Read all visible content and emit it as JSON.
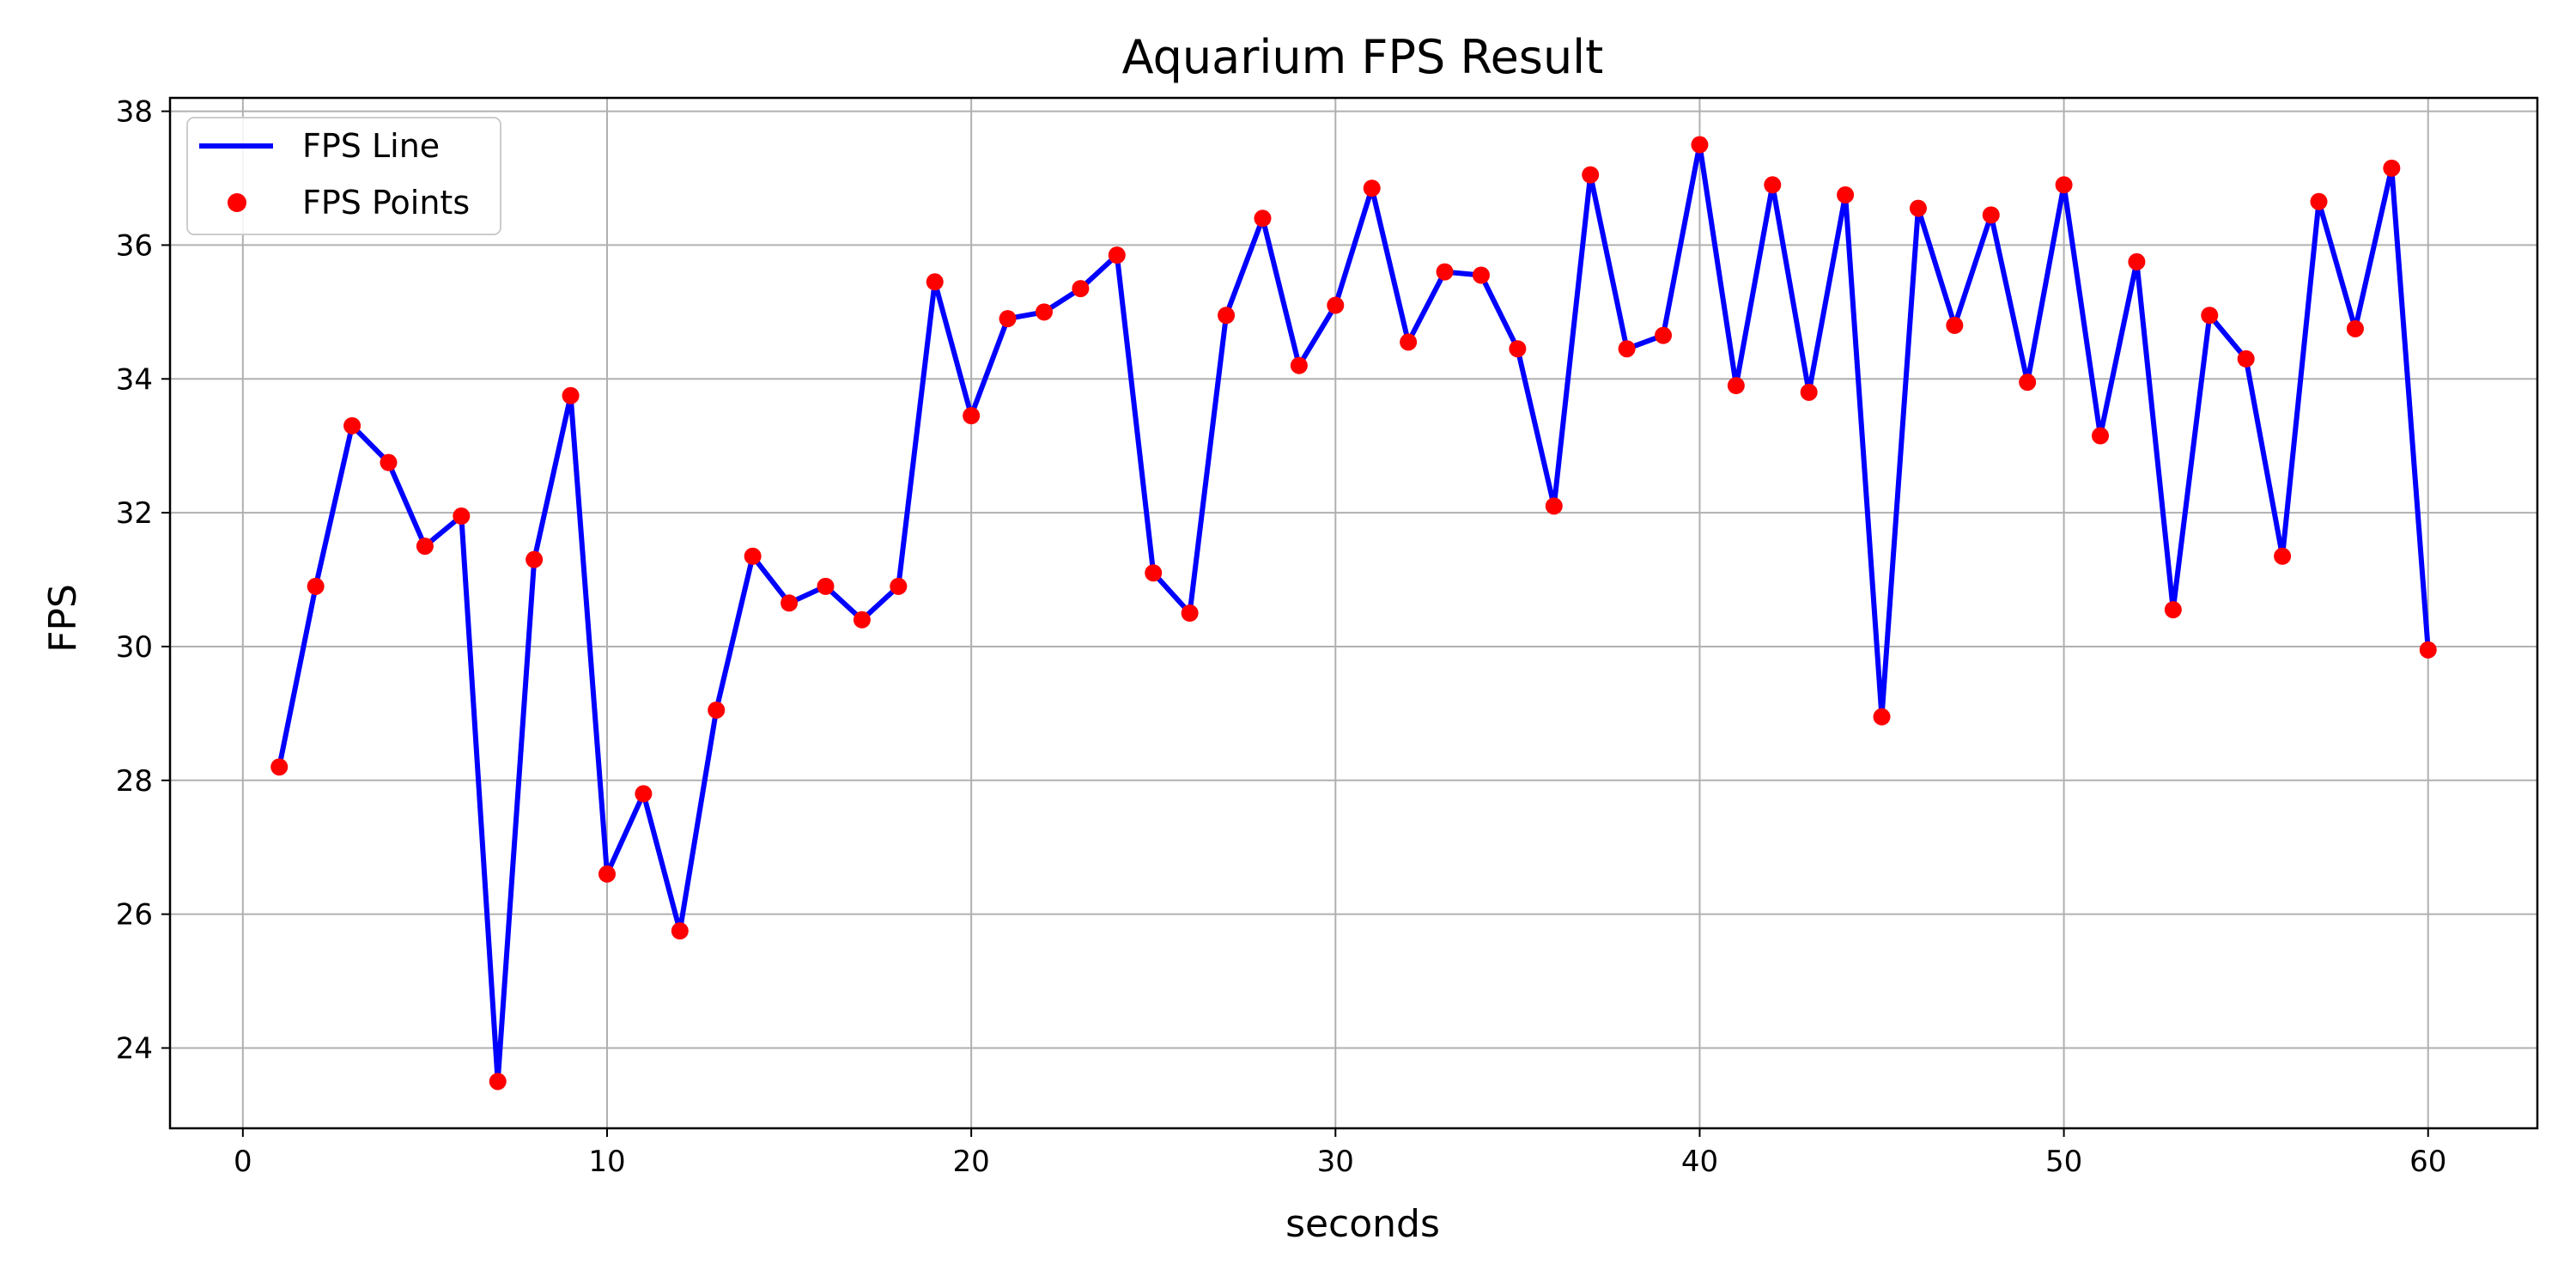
{
  "chart_data": {
    "type": "line",
    "title": "Aquarium FPS Result",
    "xlabel": "seconds",
    "ylabel": "FPS",
    "xlim": [
      -2,
      63
    ],
    "ylim": [
      22.8,
      38.2
    ],
    "xticks": [
      0,
      10,
      20,
      30,
      40,
      50,
      60
    ],
    "yticks": [
      24,
      26,
      28,
      30,
      32,
      34,
      36,
      38
    ],
    "grid": true,
    "legend_position": "top-left",
    "colors": {
      "line": "#0000ff",
      "points": "#ff0000",
      "grid": "#b0b0b0"
    },
    "x": [
      1,
      2,
      3,
      4,
      5,
      6,
      7,
      8,
      9,
      10,
      11,
      12,
      13,
      14,
      15,
      16,
      17,
      18,
      19,
      20,
      21,
      22,
      23,
      24,
      25,
      26,
      27,
      28,
      29,
      30,
      31,
      32,
      33,
      34,
      35,
      36,
      37,
      38,
      39,
      40,
      41,
      42,
      43,
      44,
      45,
      46,
      47,
      48,
      49,
      50,
      51,
      52,
      53,
      54,
      55,
      56,
      57,
      58,
      59,
      60
    ],
    "series": [
      {
        "name": "FPS Line",
        "kind": "line",
        "values": [
          28.2,
          30.9,
          33.3,
          32.75,
          31.5,
          31.95,
          23.5,
          31.3,
          33.75,
          26.6,
          27.8,
          25.75,
          29.05,
          31.35,
          30.65,
          30.9,
          30.4,
          30.9,
          35.45,
          33.45,
          34.9,
          35.0,
          35.35,
          35.85,
          31.1,
          30.5,
          34.95,
          36.4,
          34.2,
          35.1,
          36.85,
          34.55,
          35.6,
          35.55,
          34.45,
          32.1,
          37.05,
          34.45,
          34.65,
          37.5,
          33.9,
          36.9,
          33.8,
          36.75,
          28.95,
          36.55,
          34.8,
          36.45,
          33.95,
          36.9,
          33.15,
          35.75,
          30.55,
          34.95,
          34.3,
          31.35,
          36.65,
          34.75,
          37.15,
          29.95
        ]
      },
      {
        "name": "FPS Points",
        "kind": "scatter",
        "values": [
          28.2,
          30.9,
          33.3,
          32.75,
          31.5,
          31.95,
          23.5,
          31.3,
          33.75,
          26.6,
          27.8,
          25.75,
          29.05,
          31.35,
          30.65,
          30.9,
          30.4,
          30.9,
          35.45,
          33.45,
          34.9,
          35.0,
          35.35,
          35.85,
          31.1,
          30.5,
          34.95,
          36.4,
          34.2,
          35.1,
          36.85,
          34.55,
          35.6,
          35.55,
          34.45,
          32.1,
          37.05,
          34.45,
          34.65,
          37.5,
          33.9,
          36.9,
          33.8,
          36.75,
          28.95,
          36.55,
          34.8,
          36.45,
          33.95,
          36.9,
          33.15,
          35.75,
          30.55,
          34.95,
          34.3,
          31.35,
          36.65,
          34.75,
          37.15,
          29.95
        ]
      }
    ]
  }
}
